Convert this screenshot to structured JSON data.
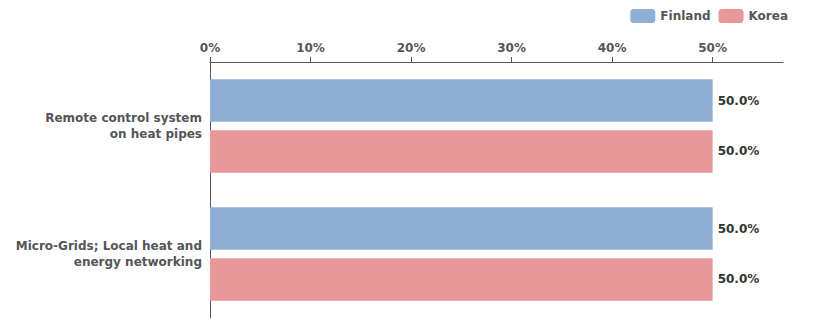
{
  "chart_data": {
    "type": "bar",
    "orientation": "horizontal",
    "categories": [
      "Remote control system\non heat pipes",
      "Micro-Grids; Local heat and\nenergy networking"
    ],
    "series": [
      {
        "name": "Finland",
        "color": "#8fafd4",
        "values": [
          50.0,
          50.0
        ],
        "value_labels": [
          "50.0%",
          "50.0%"
        ]
      },
      {
        "name": "Korea",
        "color": "#e89898",
        "values": [
          50.0,
          50.0
        ],
        "value_labels": [
          "50.0%",
          "50.0%"
        ]
      }
    ],
    "xlim": [
      0,
      57
    ],
    "xticks": [
      {
        "value": 0,
        "label": "0%"
      },
      {
        "value": 10,
        "label": "10%"
      },
      {
        "value": 20,
        "label": "20%"
      },
      {
        "value": 30,
        "label": "30%"
      },
      {
        "value": 40,
        "label": "40%"
      },
      {
        "value": 50,
        "label": "50%"
      }
    ],
    "data_labels": true,
    "grid": false,
    "legend": "upper right"
  }
}
